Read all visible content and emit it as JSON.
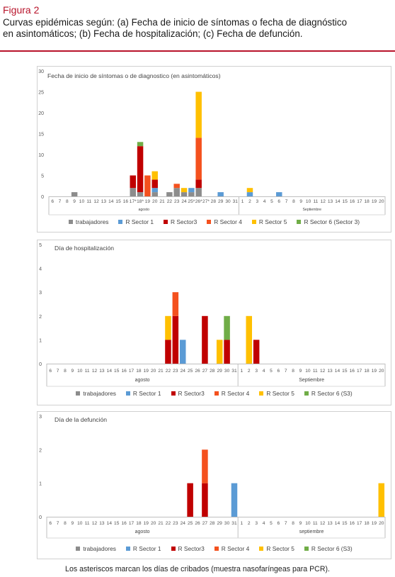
{
  "figure": {
    "label": "Figura 2",
    "caption_line1": "Curvas epidémicas según: (a) Fecha de inicio de síntomas o fecha de diagnóstico",
    "caption_line2": "en asintomáticos; (b) Fecha de hospitalización; (c) Fecha de defunción.",
    "footnote": "Los asteriscos marcan los días de cribados (muestra nasofaríngeas para PCR)."
  },
  "colors": {
    "trabajadores": "#8c8c8c",
    "R Sector 1": "#5b9bd5",
    "R Sector3": "#c00000",
    "R Sector 4": "#f4511e",
    "R Sector 5": "#ffc000",
    "R Sector 6": "#70ad47",
    "accent": "#b8142b"
  },
  "chart_data": [
    {
      "type": "bar",
      "stacked": true,
      "title": "Fecha de inicio de síntomas o de diagnostico (en asintomáticos)",
      "categories": [
        "6",
        "7",
        "8",
        "9",
        "10",
        "11",
        "12",
        "13",
        "14",
        "15",
        "16",
        "17*",
        "18*",
        "19",
        "20",
        "21",
        "22",
        "23",
        "24",
        "25*",
        "26*",
        "27*",
        "28",
        "29",
        "30",
        "31",
        "1",
        "2",
        "3",
        "4",
        "5",
        "6",
        "7",
        "8",
        "9",
        "10",
        "11",
        "12",
        "13",
        "14",
        "15",
        "16",
        "17",
        "18",
        "19",
        "20"
      ],
      "groups": [
        {
          "label": "agosto",
          "span": 26
        },
        {
          "label": "Septiembre",
          "span": 20
        }
      ],
      "ylim": [
        0,
        30
      ],
      "yticks": [
        0,
        5,
        10,
        15,
        20,
        25,
        30
      ],
      "series": [
        {
          "name": "trabajadores",
          "color_key": "trabajadores",
          "values": [
            0,
            0,
            0,
            1,
            0,
            0,
            0,
            0,
            0,
            0,
            0,
            2,
            1,
            0,
            1,
            0,
            1,
            2,
            1,
            1,
            2,
            0,
            0,
            0,
            0,
            0,
            0,
            0,
            0,
            0,
            0,
            0,
            0,
            0,
            0,
            0,
            0,
            0,
            0,
            0,
            0,
            0,
            0,
            0,
            0,
            0
          ]
        },
        {
          "name": "R Sector 1",
          "color_key": "R Sector 1",
          "values": [
            0,
            0,
            0,
            0,
            0,
            0,
            0,
            0,
            0,
            0,
            0,
            0,
            0,
            0,
            1,
            0,
            0,
            0,
            0,
            1,
            0,
            0,
            0,
            1,
            0,
            0,
            0,
            1,
            0,
            0,
            0,
            1,
            0,
            0,
            0,
            0,
            0,
            0,
            0,
            0,
            0,
            0,
            0,
            0,
            0,
            0
          ]
        },
        {
          "name": "R Sector3",
          "color_key": "R Sector3",
          "values": [
            0,
            0,
            0,
            0,
            0,
            0,
            0,
            0,
            0,
            0,
            0,
            3,
            11,
            0,
            2,
            0,
            0,
            0,
            0,
            0,
            2,
            0,
            0,
            0,
            0,
            0,
            0,
            0,
            0,
            0,
            0,
            0,
            0,
            0,
            0,
            0,
            0,
            0,
            0,
            0,
            0,
            0,
            0,
            0,
            0,
            0
          ]
        },
        {
          "name": "R Sector 4",
          "color_key": "R Sector 4",
          "values": [
            0,
            0,
            0,
            0,
            0,
            0,
            0,
            0,
            0,
            0,
            0,
            0,
            0,
            5,
            0,
            0,
            0,
            1,
            0,
            0,
            10,
            0,
            0,
            0,
            0,
            0,
            0,
            0,
            0,
            0,
            0,
            0,
            0,
            0,
            0,
            0,
            0,
            0,
            0,
            0,
            0,
            0,
            0,
            0,
            0,
            0
          ]
        },
        {
          "name": "R Sector 5",
          "color_key": "R Sector 5",
          "values": [
            0,
            0,
            0,
            0,
            0,
            0,
            0,
            0,
            0,
            0,
            0,
            0,
            0,
            0,
            2,
            0,
            0,
            0,
            1,
            0,
            11,
            0,
            0,
            0,
            0,
            0,
            0,
            1,
            0,
            0,
            0,
            0,
            0,
            0,
            0,
            0,
            0,
            0,
            0,
            0,
            0,
            0,
            0,
            0,
            0,
            0
          ]
        },
        {
          "name": "R Sector 6 (Sector 3)",
          "color_key": "R Sector 6",
          "values": [
            0,
            0,
            0,
            0,
            0,
            0,
            0,
            0,
            0,
            0,
            0,
            0,
            1,
            0,
            0,
            0,
            0,
            0,
            0,
            0,
            0,
            0,
            0,
            0,
            0,
            0,
            0,
            0,
            0,
            0,
            0,
            0,
            0,
            0,
            0,
            0,
            0,
            0,
            0,
            0,
            0,
            0,
            0,
            0,
            0,
            0
          ]
        }
      ],
      "legend_position": "bottom"
    },
    {
      "type": "bar",
      "stacked": true,
      "title": "Día de hospitalización",
      "categories": [
        "6",
        "7",
        "8",
        "9",
        "10",
        "11",
        "12",
        "13",
        "14",
        "15",
        "16",
        "17",
        "18",
        "19",
        "20",
        "21",
        "22",
        "23",
        "24",
        "25",
        "26",
        "27",
        "28",
        "29",
        "30",
        "31",
        "1",
        "2",
        "3",
        "4",
        "5",
        "6",
        "7",
        "8",
        "9",
        "10",
        "11",
        "12",
        "13",
        "14",
        "15",
        "16",
        "17",
        "18",
        "19",
        "20"
      ],
      "groups": [
        {
          "label": "agosto",
          "span": 26
        },
        {
          "label": "Septiembre",
          "span": 20
        }
      ],
      "ylim": [
        0,
        5
      ],
      "yticks": [
        0,
        1,
        2,
        3,
        4,
        5
      ],
      "series": [
        {
          "name": "trabajadores",
          "color_key": "trabajadores",
          "values": [
            0,
            0,
            0,
            0,
            0,
            0,
            0,
            0,
            0,
            0,
            0,
            0,
            0,
            0,
            0,
            0,
            0,
            0,
            0,
            0,
            0,
            0,
            0,
            0,
            0,
            0,
            0,
            0,
            0,
            0,
            0,
            0,
            0,
            0,
            0,
            0,
            0,
            0,
            0,
            0,
            0,
            0,
            0,
            0,
            0,
            0
          ]
        },
        {
          "name": "R Sector 1",
          "color_key": "R Sector 1",
          "values": [
            0,
            0,
            0,
            0,
            0,
            0,
            0,
            0,
            0,
            0,
            0,
            0,
            0,
            0,
            0,
            0,
            0,
            0,
            1,
            0,
            0,
            0,
            0,
            0,
            0,
            0,
            0,
            0,
            0,
            0,
            0,
            0,
            0,
            0,
            0,
            0,
            0,
            0,
            0,
            0,
            0,
            0,
            0,
            0,
            0,
            0
          ]
        },
        {
          "name": "R Sector3",
          "color_key": "R Sector3",
          "values": [
            0,
            0,
            0,
            0,
            0,
            0,
            0,
            0,
            0,
            0,
            0,
            0,
            0,
            0,
            0,
            0,
            1,
            2,
            0,
            0,
            0,
            2,
            0,
            0,
            1,
            0,
            0,
            0,
            1,
            0,
            0,
            0,
            0,
            0,
            0,
            0,
            0,
            0,
            0,
            0,
            0,
            0,
            0,
            0,
            0,
            0
          ]
        },
        {
          "name": "R Sector 4",
          "color_key": "R Sector 4",
          "values": [
            0,
            0,
            0,
            0,
            0,
            0,
            0,
            0,
            0,
            0,
            0,
            0,
            0,
            0,
            0,
            0,
            0,
            1,
            0,
            0,
            0,
            0,
            0,
            0,
            0,
            0,
            0,
            0,
            0,
            0,
            0,
            0,
            0,
            0,
            0,
            0,
            0,
            0,
            0,
            0,
            0,
            0,
            0,
            0,
            0,
            0
          ]
        },
        {
          "name": "R Sector 5",
          "color_key": "R Sector 5",
          "values": [
            0,
            0,
            0,
            0,
            0,
            0,
            0,
            0,
            0,
            0,
            0,
            0,
            0,
            0,
            0,
            0,
            1,
            0,
            0,
            0,
            0,
            0,
            0,
            1,
            0,
            0,
            0,
            2,
            0,
            0,
            0,
            0,
            0,
            0,
            0,
            0,
            0,
            0,
            0,
            0,
            0,
            0,
            0,
            0,
            0,
            0
          ]
        },
        {
          "name": "R Sector 6 (S3)",
          "color_key": "R Sector 6",
          "values": [
            0,
            0,
            0,
            0,
            0,
            0,
            0,
            0,
            0,
            0,
            0,
            0,
            0,
            0,
            0,
            0,
            0,
            0,
            0,
            0,
            0,
            0,
            0,
            0,
            1,
            0,
            0,
            0,
            0,
            0,
            0,
            0,
            0,
            0,
            0,
            0,
            0,
            0,
            0,
            0,
            0,
            0,
            0,
            0,
            0,
            0
          ]
        }
      ],
      "legend_position": "bottom"
    },
    {
      "type": "bar",
      "stacked": true,
      "title": "Día de la defunción",
      "categories": [
        "6",
        "7",
        "8",
        "9",
        "10",
        "11",
        "12",
        "13",
        "14",
        "15",
        "16",
        "17",
        "18",
        "19",
        "20",
        "21",
        "22",
        "23",
        "24",
        "25",
        "26",
        "27",
        "28",
        "29",
        "30",
        "31",
        "1",
        "2",
        "3",
        "4",
        "5",
        "6",
        "7",
        "8",
        "9",
        "10",
        "11",
        "12",
        "13",
        "14",
        "15",
        "16",
        "17",
        "18",
        "19",
        "20"
      ],
      "groups": [
        {
          "label": "agosto",
          "span": 26
        },
        {
          "label": "septiembre",
          "span": 20
        }
      ],
      "ylim": [
        0,
        3
      ],
      "yticks": [
        0,
        1,
        2,
        3
      ],
      "series": [
        {
          "name": "trabajadores",
          "color_key": "trabajadores",
          "values": [
            0,
            0,
            0,
            0,
            0,
            0,
            0,
            0,
            0,
            0,
            0,
            0,
            0,
            0,
            0,
            0,
            0,
            0,
            0,
            0,
            0,
            0,
            0,
            0,
            0,
            0,
            0,
            0,
            0,
            0,
            0,
            0,
            0,
            0,
            0,
            0,
            0,
            0,
            0,
            0,
            0,
            0,
            0,
            0,
            0,
            0
          ]
        },
        {
          "name": "R Sector 1",
          "color_key": "R Sector 1",
          "values": [
            0,
            0,
            0,
            0,
            0,
            0,
            0,
            0,
            0,
            0,
            0,
            0,
            0,
            0,
            0,
            0,
            0,
            0,
            0,
            0,
            0,
            0,
            0,
            0,
            0,
            1,
            0,
            0,
            0,
            0,
            0,
            0,
            0,
            0,
            0,
            0,
            0,
            0,
            0,
            0,
            0,
            0,
            0,
            0,
            0,
            0
          ]
        },
        {
          "name": "R Sector3",
          "color_key": "R Sector3",
          "values": [
            0,
            0,
            0,
            0,
            0,
            0,
            0,
            0,
            0,
            0,
            0,
            0,
            0,
            0,
            0,
            0,
            0,
            0,
            0,
            1,
            0,
            1,
            0,
            0,
            0,
            0,
            0,
            0,
            0,
            0,
            0,
            0,
            0,
            0,
            0,
            0,
            0,
            0,
            0,
            0,
            0,
            0,
            0,
            0,
            0,
            0
          ]
        },
        {
          "name": "R Sector 4",
          "color_key": "R Sector 4",
          "values": [
            0,
            0,
            0,
            0,
            0,
            0,
            0,
            0,
            0,
            0,
            0,
            0,
            0,
            0,
            0,
            0,
            0,
            0,
            0,
            0,
            0,
            1,
            0,
            0,
            0,
            0,
            0,
            0,
            0,
            0,
            0,
            0,
            0,
            0,
            0,
            0,
            0,
            0,
            0,
            0,
            0,
            0,
            0,
            0,
            0,
            0
          ]
        },
        {
          "name": "R Sector 5",
          "color_key": "R Sector 5",
          "values": [
            0,
            0,
            0,
            0,
            0,
            0,
            0,
            0,
            0,
            0,
            0,
            0,
            0,
            0,
            0,
            0,
            0,
            0,
            0,
            0,
            0,
            0,
            0,
            0,
            0,
            0,
            0,
            0,
            0,
            0,
            0,
            0,
            0,
            0,
            0,
            0,
            0,
            0,
            0,
            0,
            0,
            0,
            0,
            0,
            0,
            1
          ]
        },
        {
          "name": "R Sector 6 (S3)",
          "color_key": "R Sector 6",
          "values": [
            0,
            0,
            0,
            0,
            0,
            0,
            0,
            0,
            0,
            0,
            0,
            0,
            0,
            0,
            0,
            0,
            0,
            0,
            0,
            0,
            0,
            0,
            0,
            0,
            0,
            0,
            0,
            0,
            0,
            0,
            0,
            0,
            0,
            0,
            0,
            0,
            0,
            0,
            0,
            0,
            0,
            0,
            0,
            0,
            0,
            0
          ]
        }
      ],
      "legend_position": "bottom"
    }
  ]
}
